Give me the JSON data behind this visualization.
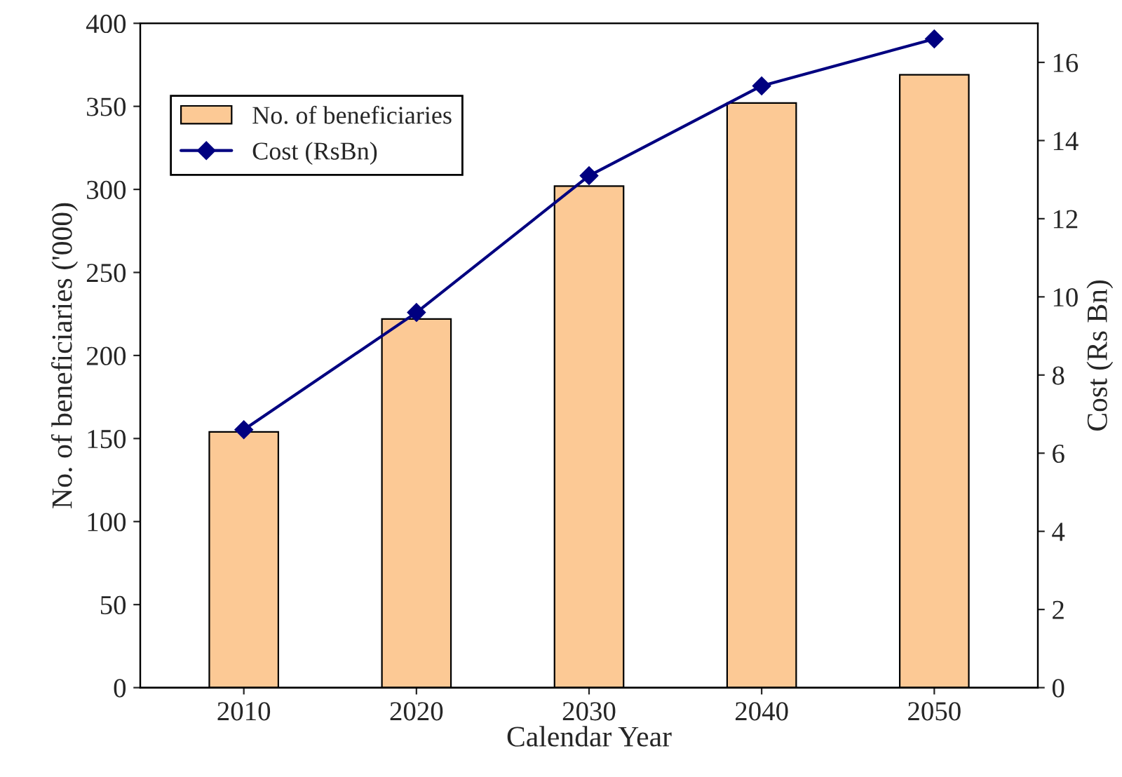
{
  "chart_data": {
    "type": "bar",
    "xlabel": "Calendar Year",
    "ylabel": "No. of beneficiaries ('000)",
    "y2label": "Cost (Rs Bn)",
    "categories": [
      "2010",
      "2020",
      "2030",
      "2040",
      "2050"
    ],
    "series": [
      {
        "name": "No. of beneficiaries",
        "color": "#fcc995",
        "values": [
          154,
          222,
          302,
          352,
          369
        ]
      },
      {
        "name": "Cost (RsBn)",
        "type": "line",
        "axis": "y2",
        "color": "#000080",
        "marker": "diamond",
        "values": [
          6.6,
          9.6,
          13.1,
          15.4,
          16.6
        ]
      }
    ],
    "ylim": [
      0,
      400
    ],
    "yticks": [
      0,
      50,
      100,
      150,
      200,
      250,
      300,
      350,
      400
    ],
    "y2lim": [
      0,
      17
    ],
    "y2ticks": [
      0,
      2,
      4,
      6,
      8,
      10,
      12,
      14,
      16
    ],
    "legend": "top left",
    "grid": false
  }
}
